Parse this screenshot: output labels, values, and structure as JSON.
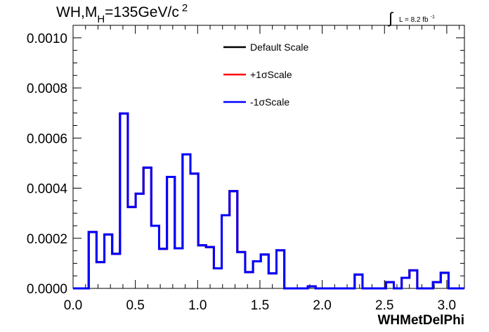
{
  "chart_data": {
    "type": "line",
    "title": {
      "main": "WH,M",
      "sub": "H",
      "rest": "=135GeV/c",
      "sup": "2"
    },
    "luminosity": {
      "symbol": "∫",
      "text": "L = 8.2 fb",
      "sup": "-1"
    },
    "xlabel": "WHMetDelPhi",
    "ylabel": "",
    "xlim": [
      0.0,
      3.1416
    ],
    "ylim": [
      0.0,
      0.00105
    ],
    "x_ticks": [
      "0.0",
      "0.5",
      "1.0",
      "1.5",
      "2.0",
      "2.5",
      "3.0"
    ],
    "y_ticks": [
      "0.0000",
      "0.0002",
      "0.0004",
      "0.0006",
      "0.0008",
      "0.0010"
    ],
    "bin_width": 0.0628,
    "grid": false,
    "legend_position": "top-right",
    "series": [
      {
        "name": "Default Scale",
        "color": "#000000",
        "values": [
          0,
          0,
          0.000225,
          0.000105,
          0.000215,
          0.000138,
          0.000698,
          0.000325,
          0.000378,
          0.000482,
          0.00025,
          0.000158,
          0.000445,
          0.00016,
          0.000535,
          0.000458,
          0.000172,
          0.000165,
          8e-05,
          0.000292,
          0.000388,
          0.000145,
          6.5e-05,
          0.000108,
          0.000135,
          6e-05,
          0.000152,
          0,
          0,
          0,
          8e-06,
          0,
          0,
          0,
          0,
          0,
          5.5e-05,
          0,
          0,
          0,
          2.5e-05,
          0,
          4.2e-05,
          7.2e-05,
          0,
          0,
          2.5e-05,
          6.2e-05,
          0,
          0
        ]
      },
      {
        "name": "+1σScale",
        "color": "#ff0000",
        "values": [
          0,
          0,
          0.000225,
          0.000105,
          0.000215,
          0.000138,
          0.000698,
          0.000325,
          0.000378,
          0.000482,
          0.00025,
          0.000158,
          0.000445,
          0.00016,
          0.000535,
          0.000458,
          0.000172,
          0.000165,
          8e-05,
          0.000292,
          0.000388,
          0.000145,
          6.5e-05,
          0.000108,
          0.000135,
          6e-05,
          0.000152,
          0,
          0,
          0,
          8e-06,
          0,
          0,
          0,
          0,
          0,
          5.5e-05,
          0,
          0,
          0,
          2.5e-05,
          0,
          4.2e-05,
          7.2e-05,
          0,
          0,
          2.5e-05,
          6.2e-05,
          0,
          0
        ]
      },
      {
        "name": "-1σScale",
        "color": "#0000ff",
        "values": [
          0,
          0,
          0.000225,
          0.000105,
          0.000215,
          0.000138,
          0.000698,
          0.000325,
          0.000378,
          0.000482,
          0.00025,
          0.000158,
          0.000445,
          0.00016,
          0.000535,
          0.000458,
          0.000172,
          0.000165,
          8e-05,
          0.000292,
          0.000388,
          0.000145,
          6.5e-05,
          0.000108,
          0.000135,
          6e-05,
          0.000152,
          0,
          0,
          0,
          8e-06,
          0,
          0,
          0,
          0,
          0,
          5.5e-05,
          0,
          0,
          0,
          2.5e-05,
          0,
          4.2e-05,
          7.2e-05,
          0,
          0,
          2.5e-05,
          6.2e-05,
          0,
          0
        ]
      }
    ]
  }
}
